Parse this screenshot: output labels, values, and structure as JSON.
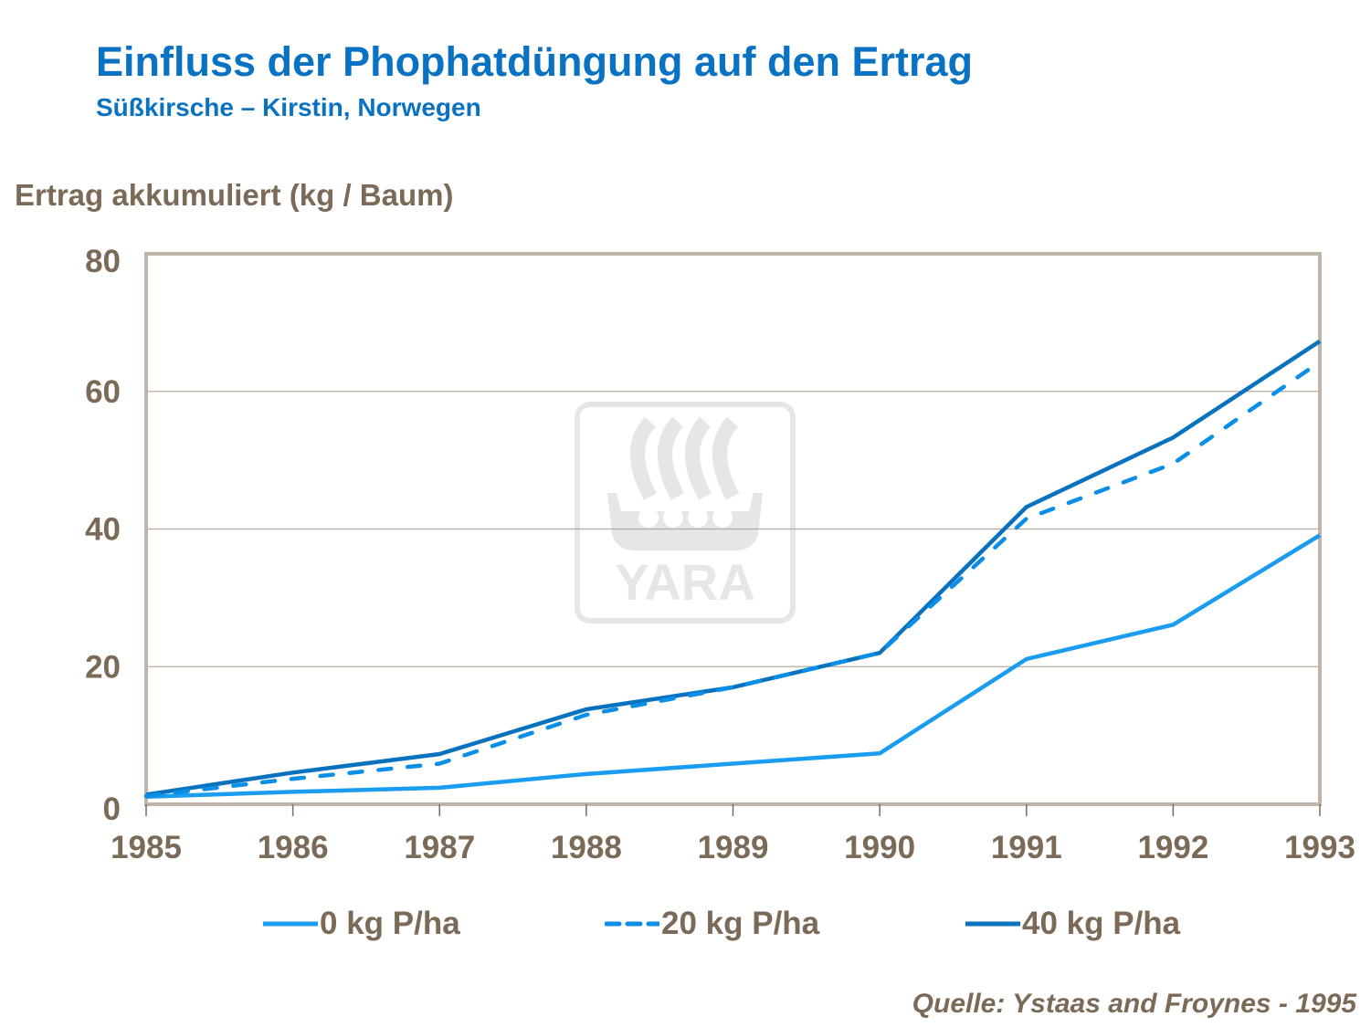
{
  "chart_data": {
    "type": "line",
    "title": "Einfluss der Phophatdüngung auf den Ertrag",
    "subtitle": "Süßkirsche – Kirstin, Norwegen",
    "ylabel": "Ertrag akkumuliert (kg / Baum)",
    "xlabel": "",
    "categories": [
      "1985",
      "1986",
      "1987",
      "1988",
      "1989",
      "1990",
      "1991",
      "1992",
      "1993"
    ],
    "ylim": [
      0,
      80
    ],
    "yticks": [
      "0",
      "20",
      "40",
      "60",
      "80"
    ],
    "grid": true,
    "legend_position": "bottom",
    "series": [
      {
        "name": "0 kg P/ha",
        "color": "#1a9cf0",
        "style": "solid",
        "values": [
          1.1,
          1.8,
          2.4,
          4.4,
          5.9,
          7.4,
          21.1,
          26.1,
          39.1
        ]
      },
      {
        "name": "20 kg P/ha",
        "color": "#0b8ee6",
        "style": "dashed",
        "values": [
          1.2,
          3.7,
          5.9,
          13.0,
          17.0,
          22.0,
          41.5,
          49.5,
          64.3
        ]
      },
      {
        "name": "40 kg P/ha",
        "color": "#0872bf",
        "style": "solid",
        "values": [
          1.4,
          4.6,
          7.3,
          13.8,
          17.0,
          22.0,
          43.2,
          53.3,
          67.3
        ]
      }
    ],
    "source": "Quelle: Ystaas and Froynes - 1995"
  },
  "watermark": {
    "text": "YARA",
    "color": "#e6e6e6"
  }
}
